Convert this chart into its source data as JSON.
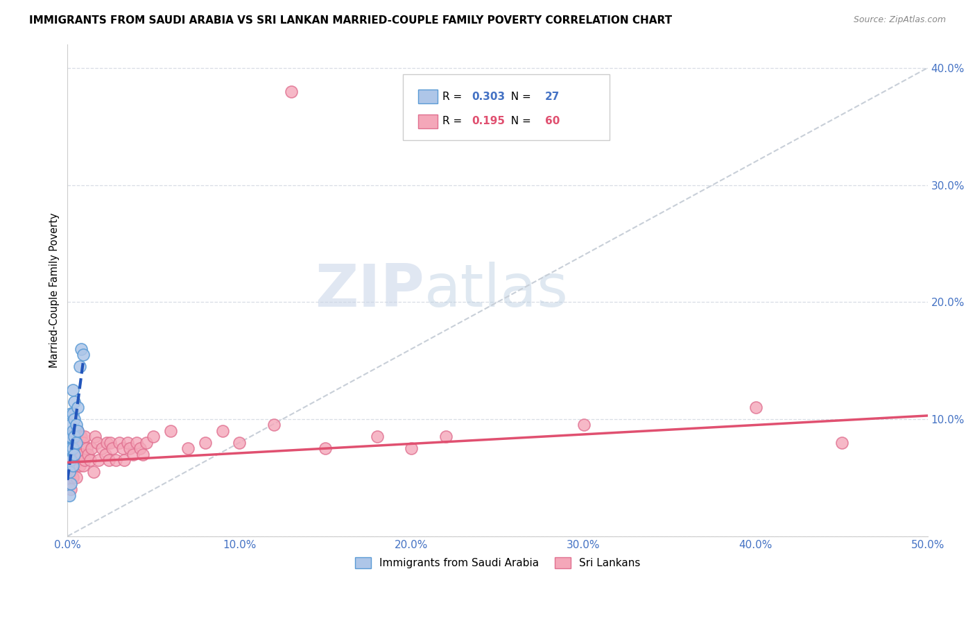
{
  "title": "IMMIGRANTS FROM SAUDI ARABIA VS SRI LANKAN MARRIED-COUPLE FAMILY POVERTY CORRELATION CHART",
  "source": "Source: ZipAtlas.com",
  "ylabel": "Married-Couple Family Poverty",
  "xlim": [
    0.0,
    0.5
  ],
  "ylim": [
    0.0,
    0.42
  ],
  "xticks": [
    0.0,
    0.1,
    0.2,
    0.3,
    0.4,
    0.5
  ],
  "yticks": [
    0.0,
    0.1,
    0.2,
    0.3,
    0.4
  ],
  "xticklabels": [
    "0.0%",
    "10.0%",
    "20.0%",
    "30.0%",
    "40.0%",
    "50.0%"
  ],
  "yticklabels": [
    "",
    "10.0%",
    "20.0%",
    "30.0%",
    "40.0%"
  ],
  "series1_color": "#aec6e8",
  "series2_color": "#f4a7b9",
  "series1_edge": "#5b9bd5",
  "series2_edge": "#e07090",
  "line1_color": "#2255bb",
  "line2_color": "#e05070",
  "diag_color": "#c8cfd8",
  "R1": 0.303,
  "N1": 27,
  "R2": 0.195,
  "N2": 60,
  "legend1": "Immigrants from Saudi Arabia",
  "legend2": "Sri Lankans",
  "watermark_zip": "ZIP",
  "watermark_atlas": "atlas",
  "saudi_x": [
    0.001,
    0.001,
    0.001,
    0.001,
    0.001,
    0.002,
    0.002,
    0.002,
    0.002,
    0.002,
    0.002,
    0.003,
    0.003,
    0.003,
    0.003,
    0.003,
    0.004,
    0.004,
    0.004,
    0.004,
    0.005,
    0.005,
    0.006,
    0.006,
    0.007,
    0.008,
    0.009
  ],
  "saudi_y": [
    0.035,
    0.055,
    0.065,
    0.075,
    0.085,
    0.045,
    0.065,
    0.075,
    0.085,
    0.095,
    0.105,
    0.06,
    0.075,
    0.09,
    0.105,
    0.125,
    0.07,
    0.085,
    0.1,
    0.115,
    0.08,
    0.095,
    0.09,
    0.11,
    0.145,
    0.16,
    0.155
  ],
  "sri_x": [
    0.001,
    0.001,
    0.002,
    0.002,
    0.003,
    0.003,
    0.004,
    0.004,
    0.005,
    0.005,
    0.006,
    0.006,
    0.007,
    0.007,
    0.008,
    0.008,
    0.009,
    0.009,
    0.01,
    0.01,
    0.011,
    0.012,
    0.013,
    0.014,
    0.015,
    0.016,
    0.017,
    0.018,
    0.02,
    0.022,
    0.023,
    0.024,
    0.025,
    0.026,
    0.028,
    0.03,
    0.032,
    0.033,
    0.035,
    0.036,
    0.038,
    0.04,
    0.042,
    0.044,
    0.046,
    0.05,
    0.06,
    0.07,
    0.08,
    0.09,
    0.1,
    0.12,
    0.13,
    0.15,
    0.18,
    0.2,
    0.22,
    0.3,
    0.4,
    0.45
  ],
  "sri_y": [
    0.05,
    0.07,
    0.04,
    0.08,
    0.05,
    0.07,
    0.06,
    0.08,
    0.05,
    0.09,
    0.07,
    0.09,
    0.06,
    0.085,
    0.07,
    0.085,
    0.06,
    0.08,
    0.065,
    0.085,
    0.075,
    0.07,
    0.065,
    0.075,
    0.055,
    0.085,
    0.08,
    0.065,
    0.075,
    0.07,
    0.08,
    0.065,
    0.08,
    0.075,
    0.065,
    0.08,
    0.075,
    0.065,
    0.08,
    0.075,
    0.07,
    0.08,
    0.075,
    0.07,
    0.08,
    0.085,
    0.09,
    0.075,
    0.08,
    0.09,
    0.08,
    0.095,
    0.38,
    0.075,
    0.085,
    0.075,
    0.085,
    0.095,
    0.11,
    0.08
  ],
  "sri_line_x0": 0.0,
  "sri_line_x1": 0.5,
  "sri_line_y0": 0.063,
  "sri_line_y1": 0.103,
  "saudi_line_x0": 0.0,
  "saudi_line_x1": 0.009,
  "saudi_line_y0": 0.048,
  "saudi_line_y1": 0.148
}
